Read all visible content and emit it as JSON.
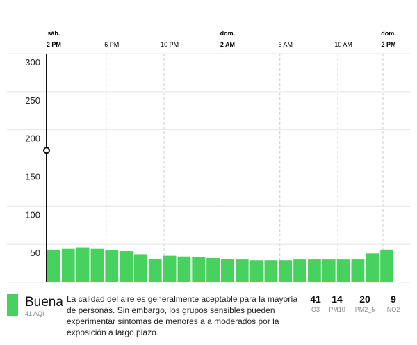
{
  "chart_data": {
    "type": "bar",
    "xtick_labels": [
      {
        "day": "sáb.",
        "time": "2 PM"
      },
      {
        "time": "6 PM"
      },
      {
        "time": "10 PM"
      },
      {
        "day": "dom.",
        "time": "2 AM"
      },
      {
        "time": "6 AM"
      },
      {
        "time": "10 AM"
      },
      {
        "day": "dom.",
        "time": "2 PM"
      }
    ],
    "values": [
      43,
      44,
      46,
      44,
      42,
      41,
      37,
      31,
      35,
      34,
      33,
      32,
      31,
      30,
      29,
      29,
      29,
      30,
      30,
      30,
      30,
      30,
      38,
      43
    ],
    "color": "#47d15e",
    "ylim": [
      0,
      300
    ],
    "yticks": [
      50,
      100,
      150,
      200,
      250,
      300
    ],
    "grid": true,
    "cursor_value": 173
  },
  "summary": {
    "level": "Buena",
    "aqi": "41 AQI",
    "description": "La calidad del aire es generalmente aceptable para la mayoría de personas. Sin embargo, los grupos sensibles pueden experimentar síntomas de menores a a moderados por la exposición a largo plazo.",
    "pollutants": [
      {
        "value": "41",
        "name": "O3"
      },
      {
        "value": "14",
        "name": "PM10"
      },
      {
        "value": "20",
        "name": "PM2_5"
      },
      {
        "value": "9",
        "name": "NO2"
      }
    ]
  }
}
